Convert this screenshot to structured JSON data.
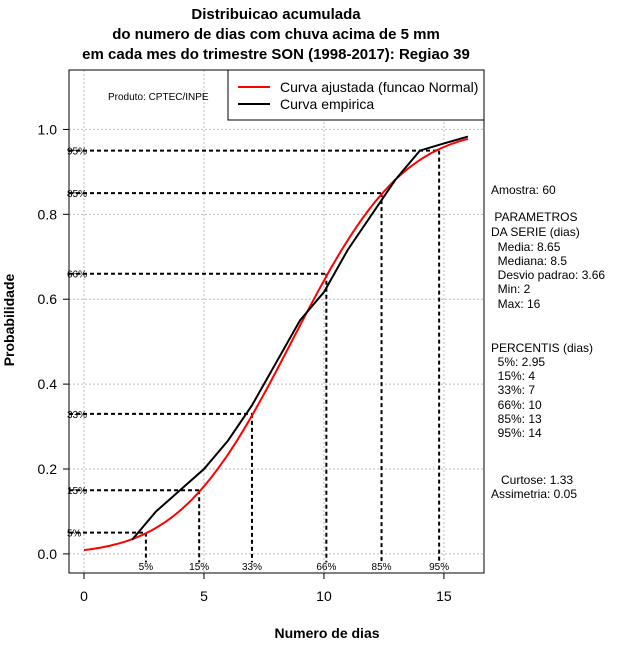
{
  "chart_data": {
    "type": "line",
    "title": [
      "Distribuicao acumulada",
      "do numero de dias com chuva acima de 5 mm",
      "em cada mes do trimestre SON (1998-2017): Regiao 39"
    ],
    "xlabel": "Numero de dias",
    "ylabel": "Probabilidade",
    "xlim": [
      -0.625,
      16.67
    ],
    "ylim": [
      -0.045,
      1.14
    ],
    "xticks": [
      0,
      5,
      10,
      15
    ],
    "yticks": [
      0.0,
      0.2,
      0.4,
      0.6,
      0.8,
      1.0
    ],
    "ytick_labels": [
      "0.0",
      "0.2",
      "0.4",
      "0.6",
      "0.8",
      "1.0"
    ],
    "grid": true,
    "legend_position": "top-right",
    "credit": "Produto: CPTEC/INPE",
    "series": [
      {
        "name": "Curva ajustada (funcao Normal)",
        "color": "#ff0000",
        "distribution": "normal",
        "mean": 8.65,
        "sd": 3.66,
        "x_range": [
          0,
          16
        ]
      },
      {
        "name": "Curva empirica",
        "color": "#000000",
        "x": [
          2,
          3,
          4,
          5,
          6,
          7,
          8,
          9,
          10,
          11,
          12,
          13,
          14,
          15,
          16
        ],
        "y": [
          0.033,
          0.1,
          0.15,
          0.2,
          0.267,
          0.35,
          0.45,
          0.55,
          0.617,
          0.717,
          0.8,
          0.883,
          0.95,
          0.967,
          0.983
        ]
      }
    ],
    "percentile_markers": [
      {
        "label": "5%",
        "p": 0.05,
        "x": 2.58
      },
      {
        "label": "15%",
        "p": 0.15,
        "x": 4.8
      },
      {
        "label": "33%",
        "p": 0.33,
        "x": 7.0
      },
      {
        "label": "66%",
        "p": 0.66,
        "x": 10.1
      },
      {
        "label": "85%",
        "p": 0.85,
        "x": 12.4
      },
      {
        "label": "95%",
        "p": 0.95,
        "x": 14.8
      }
    ]
  },
  "side": {
    "amostra": "Amostra: 60",
    "param_title1": " PARAMETROS",
    "param_title2": "DA SERIE (dias)",
    "media": "  Media: 8.65",
    "mediana": "  Mediana: 8.5",
    "desvio": "  Desvio padrao: 3.66",
    "min": "  Min: 2",
    "max": "  Max: 16",
    "perc_title": "PERCENTIS (dias)",
    "p5": "  5%: 2.95",
    "p15": "  15%: 4",
    "p33": "  33%: 7",
    "p66": "  66%: 10",
    "p85": "  85%: 13",
    "p95": "  95%: 14",
    "curtose": "   Curtose: 1.33",
    "assimetria": "Assimetria: 0.05"
  }
}
